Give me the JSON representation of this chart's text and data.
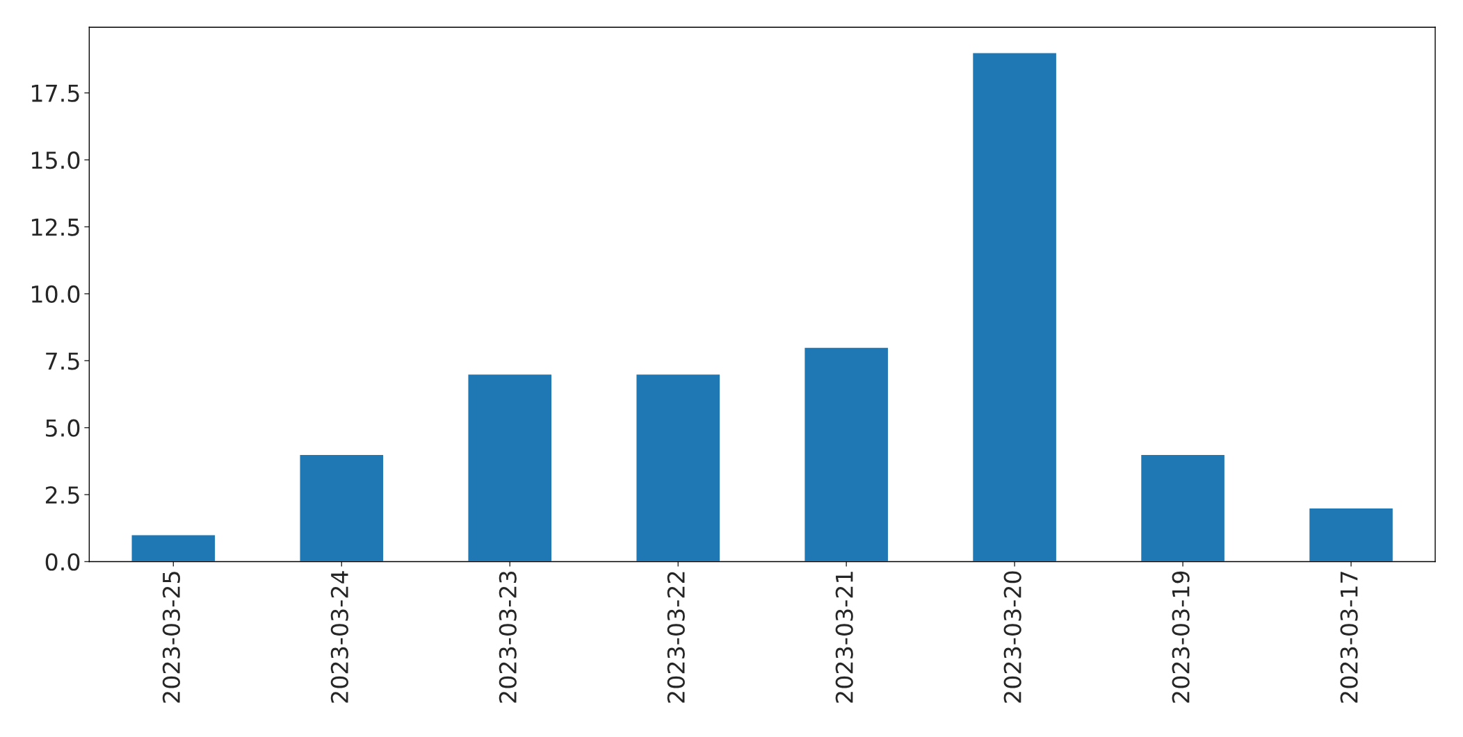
{
  "chart_data": {
    "type": "bar",
    "categories": [
      "2023-03-25",
      "2023-03-24",
      "2023-03-23",
      "2023-03-22",
      "2023-03-21",
      "2023-03-20",
      "2023-03-19",
      "2023-03-17"
    ],
    "values": [
      1,
      4,
      7,
      7,
      8,
      19,
      4,
      2
    ],
    "color": "#1f77b4",
    "ylim": [
      0,
      19.95
    ],
    "yticks": [
      {
        "value": 0,
        "label": "0.0"
      },
      {
        "value": 2.5,
        "label": "2.5"
      },
      {
        "value": 5,
        "label": "5.0"
      },
      {
        "value": 7.5,
        "label": "7.5"
      },
      {
        "value": 10,
        "label": "10.0"
      },
      {
        "value": 12.5,
        "label": "12.5"
      },
      {
        "value": 15,
        "label": "15.0"
      },
      {
        "value": 17.5,
        "label": "17.5"
      }
    ],
    "grid": false,
    "legend": false
  }
}
